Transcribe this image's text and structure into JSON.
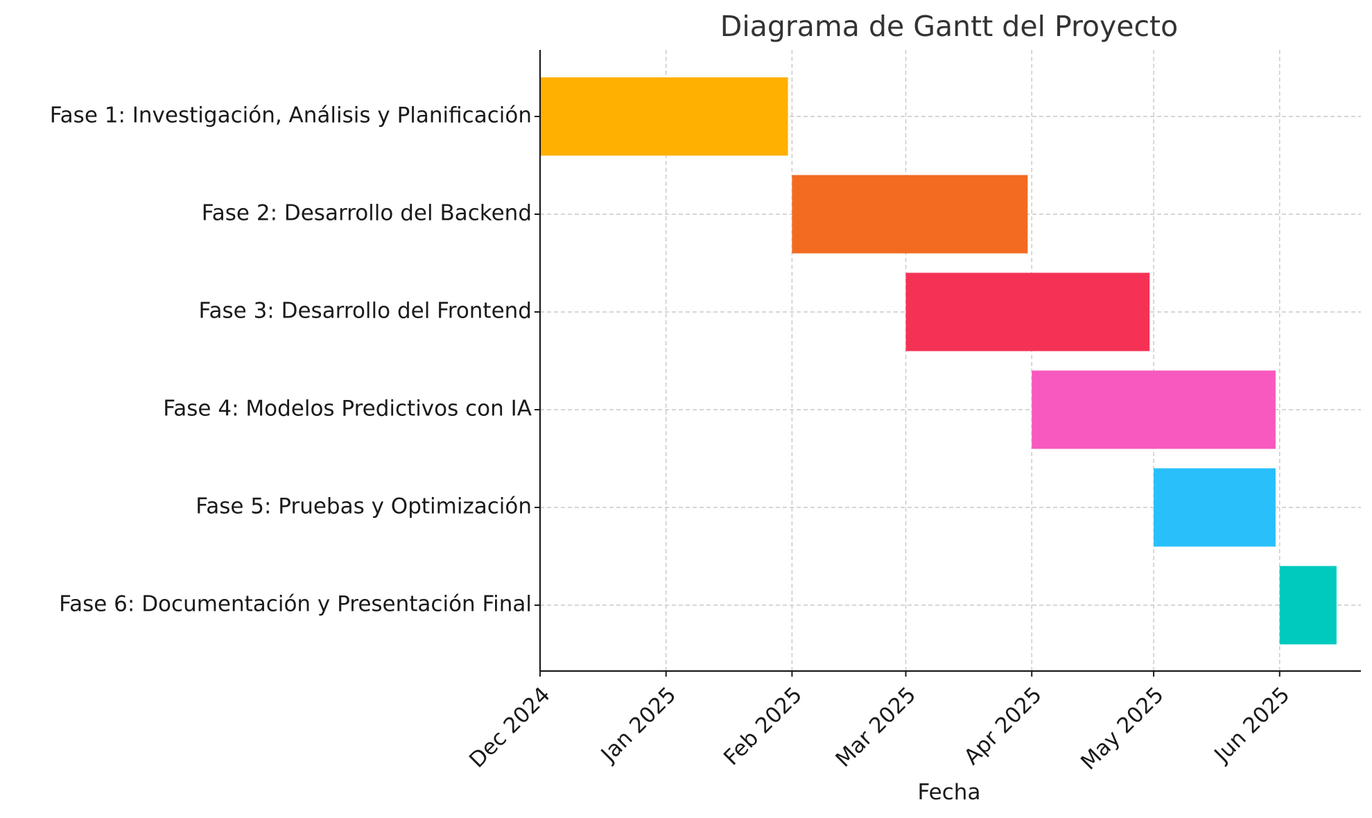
{
  "chart_data": {
    "type": "bar",
    "orientation": "horizontal",
    "title": "Diagrama de Gantt del Proyecto",
    "xlabel": "Fecha",
    "ylabel": "",
    "x_axis": "date",
    "xlim": [
      "2024-12-01",
      "2025-06-21"
    ],
    "x_ticks": [
      {
        "date": "2024-12-01",
        "label": "Dec 2024"
      },
      {
        "date": "2025-01-01",
        "label": "Jan 2025"
      },
      {
        "date": "2025-02-01",
        "label": "Feb 2025"
      },
      {
        "date": "2025-03-01",
        "label": "Mar 2025"
      },
      {
        "date": "2025-04-01",
        "label": "Apr 2025"
      },
      {
        "date": "2025-05-01",
        "label": "May 2025"
      },
      {
        "date": "2025-06-01",
        "label": "Jun 2025"
      }
    ],
    "grid": true,
    "tasks": [
      {
        "name": "Fase 1: Investigación, Análisis y Planificación",
        "start": "2024-12-01",
        "end": "2025-01-31",
        "color": "#FFB000"
      },
      {
        "name": "Fase 2: Desarrollo del Backend",
        "start": "2025-02-01",
        "end": "2025-03-31",
        "color": "#F26B21"
      },
      {
        "name": "Fase 3: Desarrollo del Frontend",
        "start": "2025-03-01",
        "end": "2025-04-30",
        "color": "#F53255"
      },
      {
        "name": "Fase 4: Modelos Predictivos con IA",
        "start": "2025-04-01",
        "end": "2025-05-31",
        "color": "#F759BF"
      },
      {
        "name": "Fase 5: Pruebas y Optimización",
        "start": "2025-05-01",
        "end": "2025-05-31",
        "color": "#29BFFB"
      },
      {
        "name": "Fase 6: Documentación y Presentación Final",
        "start": "2025-06-01",
        "end": "2025-06-15",
        "color": "#00C9BE"
      }
    ]
  }
}
